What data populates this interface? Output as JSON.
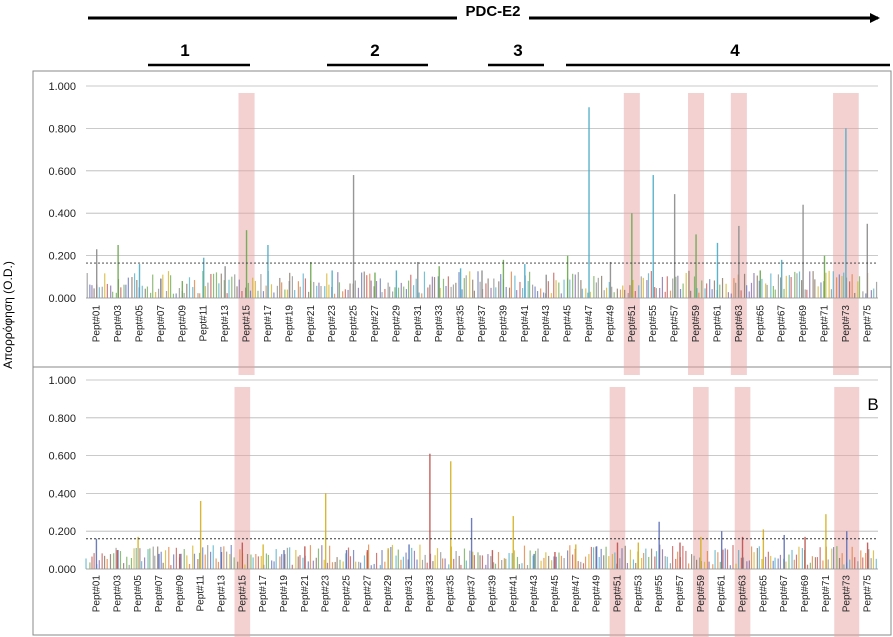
{
  "chart_data": [
    {
      "type": "bar",
      "header": "PDC-E2",
      "regions": [
        "1",
        "2",
        "3",
        "4"
      ],
      "ylabel": "Απορρόφηση (O.D.)",
      "ylim": [
        0,
        1.0
      ],
      "yticks": [
        "0.000",
        "0.200",
        "0.400",
        "0.600",
        "0.800",
        "1.000"
      ],
      "threshold": 0.165,
      "panel_label": "",
      "categories": [
        "Pept#01",
        "Pept#03",
        "Pept#05",
        "Pept#07",
        "Pept#09",
        "Pept#11",
        "Pept#13",
        "Pept#15",
        "Pept#17",
        "Pept#19",
        "Pept#21",
        "Pept#23",
        "Pept#25",
        "Pept#27",
        "Pept#29",
        "Pept#31",
        "Pept#33",
        "Pept#35",
        "Pept#37",
        "Pept#39",
        "Pept#41",
        "Pept#43",
        "Pept#45",
        "Pept#47",
        "Pept#49",
        "Pept#51",
        "Pept#55",
        "Pept#57",
        "Pept#59",
        "Pept#61",
        "Pept#63",
        "Pept#65",
        "Pept#67",
        "Pept#69",
        "Pept#71",
        "Pept#73",
        "Pept#75"
      ],
      "highlighted": [
        "Pept#15",
        "Pept#51",
        "Pept#59",
        "Pept#63",
        "Pept#73"
      ],
      "peak_values": [
        0.23,
        0.25,
        0.16,
        0.09,
        0.08,
        0.19,
        0.15,
        0.32,
        0.25,
        0.08,
        0.17,
        0.13,
        0.58,
        0.12,
        0.13,
        0.17,
        0.15,
        0.14,
        0.13,
        0.18,
        0.16,
        0.11,
        0.2,
        0.9,
        0.17,
        0.4,
        0.58,
        0.49,
        0.3,
        0.26,
        0.34,
        0.13,
        0.18,
        0.44,
        0.2,
        0.8,
        0.35
      ],
      "grid": true
    },
    {
      "type": "bar",
      "ylabel": "Απορρόφηση (O.D.)",
      "ylim": [
        0,
        1.0
      ],
      "yticks": [
        "0.000",
        "0.200",
        "0.400",
        "0.600",
        "0.800",
        "1.000"
      ],
      "threshold": 0.16,
      "panel_label": "B",
      "categories": [
        "Pept#01",
        "Pept#03",
        "Pept#05",
        "Pept#07",
        "Pept#09",
        "Pept#11",
        "Pept#13",
        "Pept#15",
        "Pept#17",
        "Pept#19",
        "Pept#21",
        "Pept#23",
        "Pept#25",
        "Pept#27",
        "Pept#29",
        "Pept#31",
        "Pept#33",
        "Pept#35",
        "Pept#37",
        "Pept#39",
        "Pept#41",
        "Pept#43",
        "Pept#45",
        "Pept#47",
        "Pept#49",
        "Pept#51",
        "Pept#53",
        "Pept#55",
        "Pept#57",
        "Pept#59",
        "Pept#61",
        "Pept#63",
        "Pept#65",
        "Pept#67",
        "Pept#69",
        "Pept#71",
        "Pept#73",
        "Pept#75"
      ],
      "highlighted": [
        "Pept#15",
        "Pept#51",
        "Pept#59",
        "Pept#63",
        "Pept#73"
      ],
      "peak_values": [
        0.16,
        0.1,
        0.17,
        0.08,
        0.08,
        0.36,
        0.09,
        0.14,
        0.13,
        0.1,
        0.12,
        0.4,
        0.1,
        0.1,
        0.11,
        0.13,
        0.61,
        0.57,
        0.27,
        0.1,
        0.28,
        0.08,
        0.09,
        0.13,
        0.12,
        0.14,
        0.14,
        0.25,
        0.14,
        0.17,
        0.2,
        0.17,
        0.21,
        0.18,
        0.17,
        0.29,
        0.2,
        0.14
      ],
      "grid": true
    }
  ],
  "colors": {
    "highlight": "#e8a3a3",
    "threshold_line": "#333333",
    "series_palette": [
      "#8b8b8b",
      "#5d6fb8",
      "#e07b39",
      "#6aa84f",
      "#c0504d",
      "#8064a2",
      "#4bacc6",
      "#d4b020",
      "#7f6a5a"
    ]
  }
}
